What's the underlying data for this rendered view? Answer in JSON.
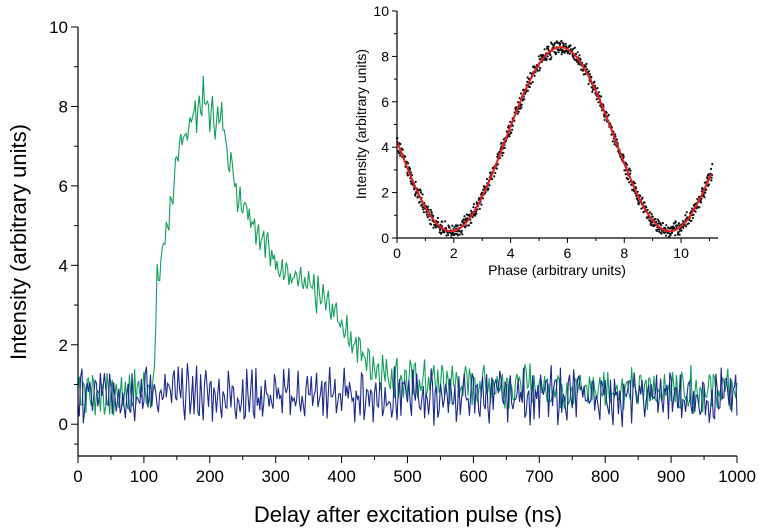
{
  "chart_data": [
    {
      "type": "line",
      "xlabel": "Delay after excitation pulse (ns)",
      "ylabel": "Intensity (arbitrary units)",
      "xlim": [
        0,
        1000
      ],
      "ylim": [
        -0.8,
        10
      ],
      "xticks": [
        "0",
        "100",
        "200",
        "300",
        "400",
        "500",
        "600",
        "700",
        "800",
        "900",
        "1000"
      ],
      "yticks": [
        "0",
        "2",
        "4",
        "6",
        "8",
        "10"
      ],
      "colors": {
        "green": "#11a05a",
        "blue": "#1c2a8c"
      },
      "series": [
        {
          "color": "#11a05a",
          "x": [
            0,
            50,
            100,
            115,
            120,
            140,
            160,
            180,
            190,
            200,
            220,
            240,
            260,
            280,
            300,
            320,
            340,
            360,
            380,
            400,
            420,
            440,
            460,
            480,
            500,
            550,
            600,
            650,
            700,
            750,
            800,
            850,
            900,
            950,
            1000
          ],
          "y": [
            0.9,
            0.7,
            0.9,
            1.0,
            3.5,
            5.5,
            7.3,
            7.9,
            8.2,
            7.8,
            7.6,
            5.9,
            5.4,
            4.6,
            4.2,
            3.7,
            3.5,
            3.3,
            3.0,
            2.6,
            2.0,
            1.6,
            1.35,
            1.2,
            1.1,
            1.05,
            1.0,
            1.0,
            0.95,
            0.9,
            0.9,
            0.85,
            0.9,
            0.85,
            0.85
          ]
        },
        {
          "color": "#1c2a8c",
          "x": [
            0,
            100,
            200,
            300,
            400,
            500,
            600,
            700,
            800,
            900,
            1000
          ],
          "y": [
            0.7,
            0.8,
            0.75,
            0.7,
            0.75,
            0.7,
            0.7,
            0.75,
            0.7,
            0.7,
            0.7
          ]
        }
      ]
    },
    {
      "type": "scatter",
      "xlabel": "Phase (arbitrary units)",
      "ylabel": "Intensity (arbitrary units)",
      "xlim": [
        0,
        11.3
      ],
      "ylim": [
        0,
        10
      ],
      "xticks": [
        "0",
        "2",
        "4",
        "6",
        "8",
        "10"
      ],
      "yticks": [
        "0",
        "2",
        "4",
        "6",
        "8",
        "10"
      ],
      "colors": {
        "points": "#111111",
        "fit": "#e01f26"
      },
      "fit": {
        "amplitude": 4.05,
        "offset": 4.35,
        "peak_phase": 5.75,
        "period": 7.7
      },
      "x": [
        0,
        0.5,
        1.0,
        1.5,
        1.9,
        2.5,
        3.0,
        3.5,
        4.0,
        4.5,
        5.0,
        5.5,
        5.75,
        6.0,
        6.5,
        7.0,
        7.5,
        8.0,
        8.5,
        9.0,
        9.6,
        10.0,
        10.5,
        11.0
      ],
      "y": [
        3.95,
        2.4,
        1.2,
        0.5,
        0.3,
        0.9,
        2.0,
        3.3,
        4.9,
        6.3,
        7.6,
        8.4,
        8.5,
        8.35,
        7.7,
        6.5,
        5.0,
        3.3,
        1.9,
        0.8,
        0.3,
        0.5,
        1.3,
        2.7
      ]
    }
  ]
}
